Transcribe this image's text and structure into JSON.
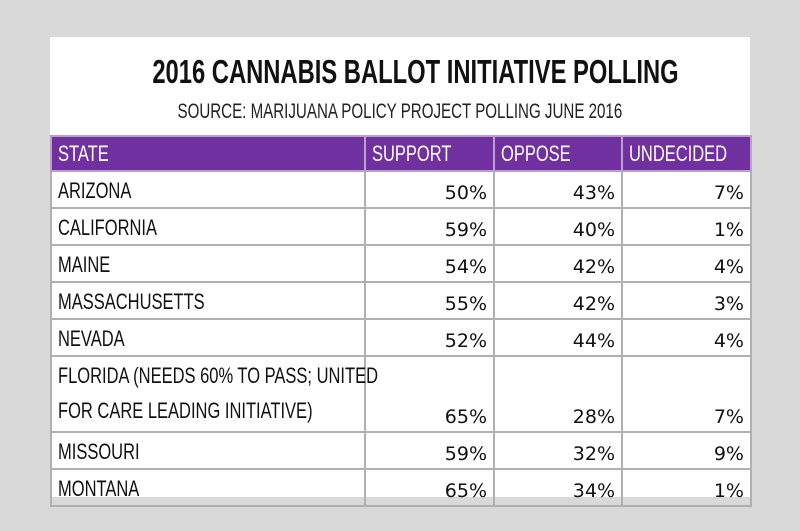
{
  "chart_data": {
    "type": "table",
    "title": "2016 CANNABIS BALLOT INITIATIVE POLLING",
    "subtitle": "SOURCE: MARIJUANA POLICY PROJECT POLLING JUNE 2016",
    "columns": [
      "STATE",
      "SUPPORT",
      "OPPOSE",
      "UNDECIDED"
    ],
    "rows": [
      {
        "state": "ARIZONA",
        "support": "50%",
        "oppose": "43%",
        "undecided": "7%"
      },
      {
        "state": "CALIFORNIA",
        "support": "59%",
        "oppose": "40%",
        "undecided": "1%"
      },
      {
        "state": "MAINE",
        "support": "54%",
        "oppose": "42%",
        "undecided": "4%"
      },
      {
        "state": "MASSACHUSETTS",
        "support": "55%",
        "oppose": "42%",
        "undecided": "3%"
      },
      {
        "state": "NEVADA",
        "support": "52%",
        "oppose": "44%",
        "undecided": "4%"
      },
      {
        "state": "FLORIDA (NEEDS 60% TO PASS; UNITED",
        "state_line2": "FOR CARE LEADING INITIATIVE)",
        "support": "65%",
        "oppose": "28%",
        "undecided": "7%"
      },
      {
        "state": "MISSOURI",
        "support": "59%",
        "oppose": "32%",
        "undecided": "9%"
      },
      {
        "state": "MONTANA",
        "support": "65%",
        "oppose": "34%",
        "undecided": "1%"
      }
    ],
    "colors": {
      "header": "#7030a0",
      "background": "#d9d9d9",
      "border": "#b0b0b0"
    }
  }
}
